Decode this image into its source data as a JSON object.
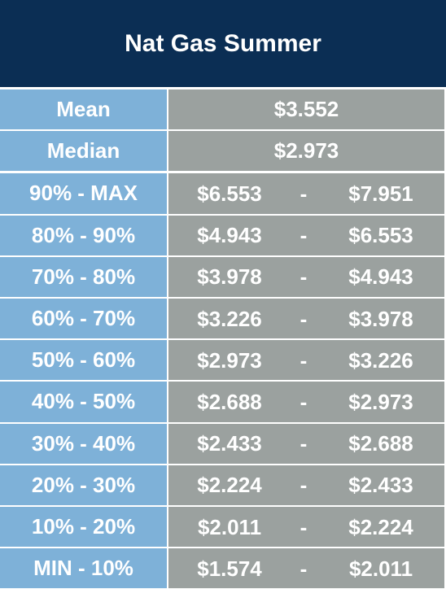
{
  "title": "Nat Gas Summer",
  "summary": [
    {
      "label": "Mean",
      "value": "$3.552"
    },
    {
      "label": "Median",
      "value": "$2.973"
    }
  ],
  "ranges": [
    {
      "label": "90% - MAX",
      "low": "$6.553",
      "sep": "-",
      "high": "$7.951"
    },
    {
      "label": "80% - 90%",
      "low": "$4.943",
      "sep": "-",
      "high": "$6.553"
    },
    {
      "label": "70% - 80%",
      "low": "$3.978",
      "sep": "-",
      "high": "$4.943"
    },
    {
      "label": "60% - 70%",
      "low": "$3.226",
      "sep": "-",
      "high": "$3.978"
    },
    {
      "label": "50% - 60%",
      "low": "$2.973",
      "sep": "-",
      "high": "$3.226"
    },
    {
      "label": "40% - 50%",
      "low": "$2.688",
      "sep": "-",
      "high": "$2.973"
    },
    {
      "label": "30% - 40%",
      "low": "$2.433",
      "sep": "-",
      "high": "$2.688"
    },
    {
      "label": "20% - 30%",
      "low": "$2.224",
      "sep": "-",
      "high": "$2.433"
    },
    {
      "label": "10% - 20%",
      "low": "$2.011",
      "sep": "-",
      "high": "$2.224"
    },
    {
      "label": "MIN - 10%",
      "low": "$1.574",
      "sep": "-",
      "high": "$2.011"
    }
  ]
}
